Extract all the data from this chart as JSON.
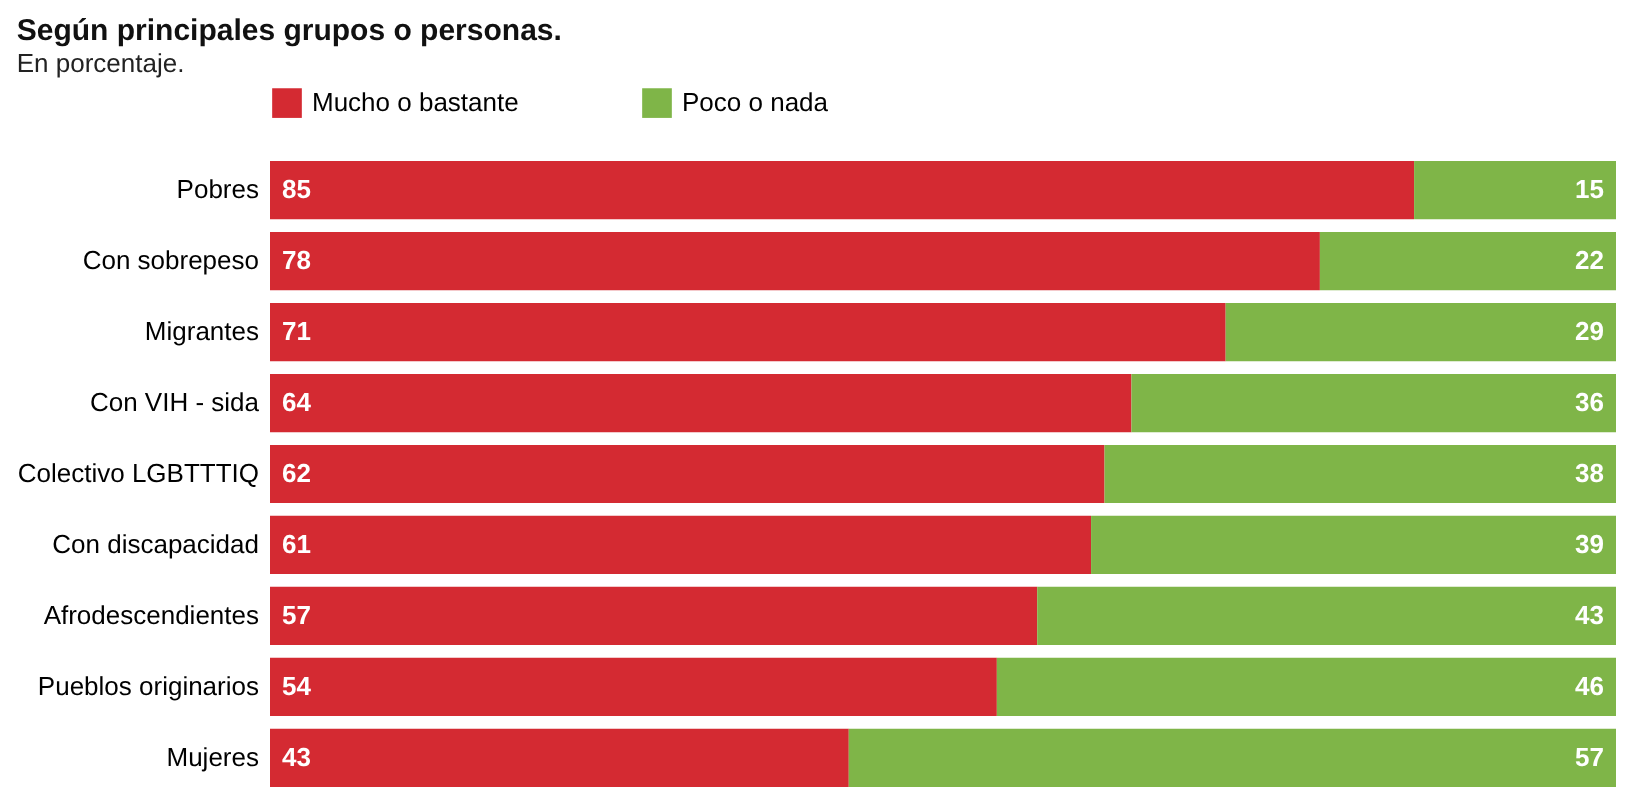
{
  "chart_data": {
    "type": "bar",
    "orientation": "horizontal",
    "stacked": true,
    "data_labels": true,
    "grid": false,
    "legend": "top left",
    "title": "Según principales grupos o personas.",
    "subtitle": "En porcentaje.",
    "categories": [
      "Pobres",
      "Con sobrepeso",
      "Migrantes",
      "Con VIH - sida",
      "Colectivo LGBTTTIQ",
      "Con discapacidad",
      "Afrodescendientes",
      "Pueblos originarios",
      "Mujeres"
    ],
    "series": [
      {
        "name": "Mucho o bastante",
        "color": "#d42a32",
        "values": [
          85,
          78,
          71,
          64,
          62,
          61,
          57,
          54,
          43
        ]
      },
      {
        "name": "Poco o nada",
        "color": "#7fb548",
        "values": [
          15,
          22,
          29,
          36,
          38,
          39,
          43,
          46,
          57
        ]
      }
    ]
  }
}
